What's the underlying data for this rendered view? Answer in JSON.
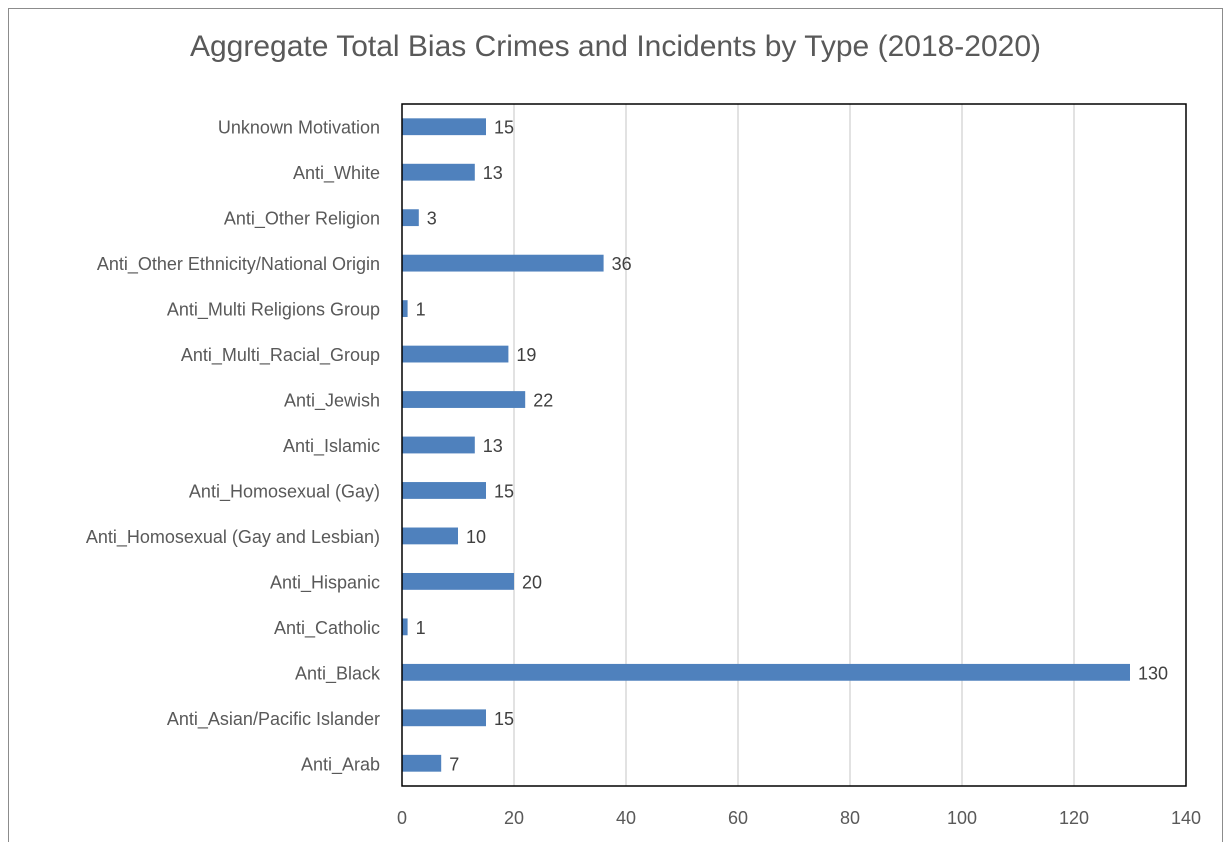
{
  "chart_data": {
    "type": "bar",
    "orientation": "horizontal",
    "title": "Aggregate Total Bias Crimes and Incidents by Type (2018-2020)",
    "categories": [
      "Unknown Motivation",
      "Anti_White",
      "Anti_Other Religion",
      "Anti_Other Ethnicity/National Origin",
      "Anti_Multi Religions Group",
      "Anti_Multi_Racial_Group",
      "Anti_Jewish",
      "Anti_Islamic",
      "Anti_Homosexual (Gay)",
      "Anti_Homosexual (Gay and Lesbian)",
      "Anti_Hispanic",
      "Anti_Catholic",
      "Anti_Black",
      "Anti_Asian/Pacific Islander",
      "Anti_Arab"
    ],
    "values": [
      15,
      13,
      3,
      36,
      1,
      19,
      22,
      13,
      15,
      10,
      20,
      1,
      130,
      15,
      7
    ],
    "xlim": [
      0,
      140
    ],
    "xticks": [
      0,
      20,
      40,
      60,
      80,
      100,
      120,
      140
    ],
    "grid": "vertical",
    "bar_color": "#4f81bd",
    "grid_color": "#d9d9d9",
    "data_labels": true
  }
}
